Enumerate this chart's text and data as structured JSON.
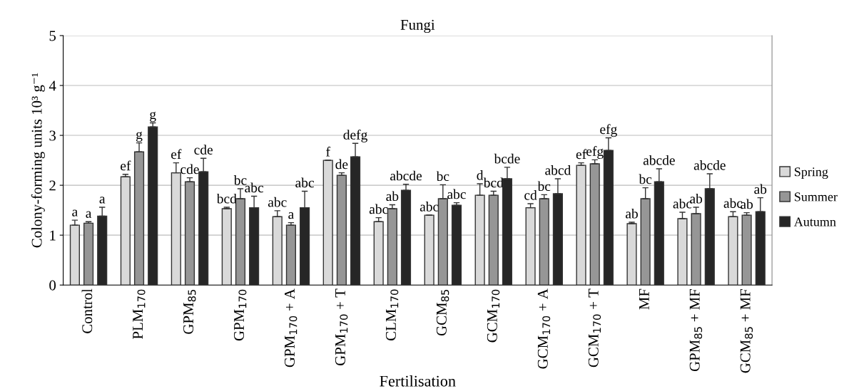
{
  "chart_data": {
    "type": "bar",
    "title": "Fungi",
    "xlabel": "Fertilisation",
    "ylabel": "Colony-forming units 10³ g⁻¹",
    "categories": [
      "Control",
      "PLM$_{170}$",
      "GPM$_{85}$",
      "GPM$_{170}$",
      "GPM$_{170}$ + A",
      "GPM$_{170}$ + T",
      "CLM$_{170}$",
      "GCM$_{85}$",
      "GCM$_{170}$",
      "GCM$_{170}$ + A",
      "GCM$_{170}$ + T",
      "MF",
      "GPM$_{85}$ + MF",
      "GCM$_{85}$ + MF"
    ],
    "series": [
      {
        "name": "Spring",
        "color": "#d9d9d9",
        "values": [
          1.2,
          2.17,
          2.25,
          1.53,
          1.37,
          2.5,
          1.27,
          1.4,
          1.8,
          1.55,
          2.4,
          1.23,
          1.33,
          1.37
        ],
        "errors": [
          0.1,
          0.05,
          0.2,
          0.03,
          0.12,
          null,
          0.08,
          null,
          0.23,
          0.08,
          0.05,
          0.03,
          0.13,
          0.1
        ],
        "value_labels": [
          "a",
          "ef",
          "ef",
          "bcd",
          "abc",
          "f",
          "abc",
          "abc",
          "d",
          "cd",
          "ef",
          "ab",
          "abc",
          "abc"
        ]
      },
      {
        "name": "Summer",
        "color": "#969696",
        "values": [
          1.24,
          2.67,
          2.07,
          1.73,
          1.2,
          2.2,
          1.53,
          1.73,
          1.8,
          1.73,
          2.43,
          1.73,
          1.43,
          1.4
        ],
        "errors": [
          0.03,
          0.18,
          0.08,
          0.2,
          0.05,
          0.05,
          0.08,
          0.28,
          0.08,
          0.08,
          0.08,
          0.22,
          0.13,
          0.05
        ],
        "value_labels": [
          "a",
          "g",
          "cde",
          "bc",
          "a",
          "de",
          "ab",
          "bc",
          "bcd",
          "bc",
          "efg",
          "bc",
          "ab",
          "ab"
        ]
      },
      {
        "name": "Autumn",
        "color": "#262626",
        "values": [
          1.38,
          3.17,
          2.27,
          1.55,
          1.55,
          2.57,
          1.9,
          1.6,
          2.13,
          1.83,
          2.7,
          2.07,
          1.93,
          1.47
        ],
        "errors": [
          0.18,
          0.08,
          0.27,
          0.23,
          0.33,
          0.27,
          0.12,
          0.05,
          0.23,
          0.3,
          0.25,
          0.26,
          0.3,
          0.28
        ],
        "value_labels": [
          "a",
          "g",
          "cde",
          "abc",
          "abc",
          "defg",
          "abcde",
          "abc",
          "bcde",
          "abcd",
          "efg",
          "abcde",
          "abcde",
          "ab"
        ]
      }
    ],
    "ylim": [
      0,
      5
    ],
    "yticks": [
      0,
      1,
      2,
      3,
      4,
      5
    ],
    "grid": "y",
    "legend": "right"
  }
}
